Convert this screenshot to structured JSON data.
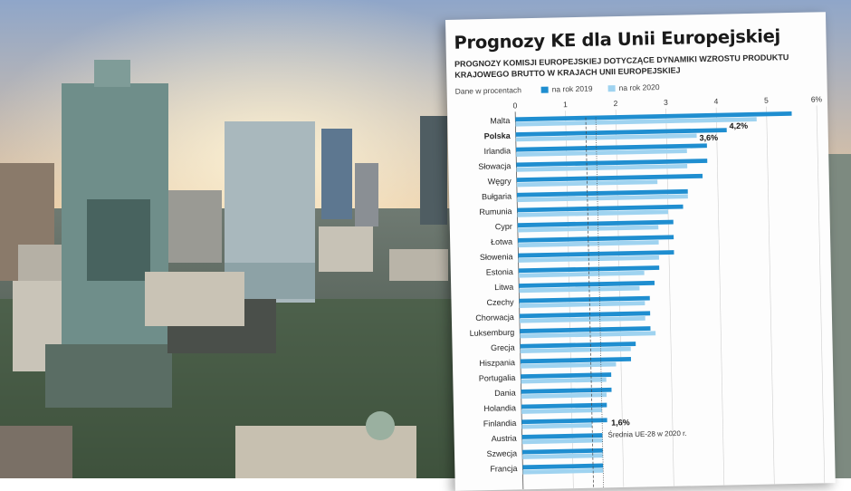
{
  "photo": {
    "sky_top": "#8fa6c9",
    "sky_glow": "#f6d9a6",
    "city": "#5f6b6a"
  },
  "card": {
    "title": "Prognozy KE dla Unii Europejskiej",
    "subtitle": "PROGNOZY KOMISJI EUROPEJSKIEJ DOTYCZĄCE DYNAMIKI WZROSTU PRODUKTU KRAJOWEGO BRUTTO W KRAJACH UNII EUROPEJSKIEJ",
    "unit": "Dane w procentach",
    "legend": [
      {
        "label": "na rok 2019",
        "color": "#1f8ed0"
      },
      {
        "label": "na rok 2020",
        "color": "#9fd3f0"
      }
    ]
  },
  "chart_data": {
    "type": "bar",
    "orientation": "horizontal",
    "categories": [
      "Malta",
      "Polska",
      "Irlandia",
      "Słowacja",
      "Węgry",
      "Bułgaria",
      "Rumunia",
      "Cypr",
      "Łotwa",
      "Słowenia",
      "Estonia",
      "Litwa",
      "Czechy",
      "Chorwacja",
      "Luksemburg",
      "Grecja",
      "Hiszpania",
      "Portugalia",
      "Dania",
      "Holandia",
      "Finlandia",
      "Austria",
      "Szwecja",
      "Francja"
    ],
    "series": [
      {
        "name": "na rok 2019",
        "color": "#1f8ed0",
        "values": [
          5.5,
          4.2,
          3.8,
          3.8,
          3.7,
          3.4,
          3.3,
          3.1,
          3.1,
          3.1,
          2.8,
          2.7,
          2.6,
          2.6,
          2.6,
          2.3,
          2.2,
          1.8,
          1.8,
          1.7,
          1.7,
          1.6,
          1.6,
          1.6
        ]
      },
      {
        "name": "na rok 2020",
        "color": "#9fd3f0",
        "values": [
          4.8,
          3.6,
          3.4,
          3.4,
          2.8,
          3.4,
          3.0,
          2.8,
          2.8,
          2.8,
          2.5,
          2.4,
          2.5,
          2.5,
          2.7,
          2.2,
          1.9,
          1.7,
          1.7,
          1.6,
          1.4,
          1.6,
          1.6,
          1.6
        ]
      }
    ],
    "xticks": [
      "0",
      "1",
      "2",
      "3",
      "4",
      "5",
      "6%"
    ],
    "xlim": [
      0,
      6
    ],
    "highlight_category": "Polska",
    "data_labels": [
      {
        "category": "Polska",
        "series": 0,
        "text": "4,2%"
      },
      {
        "category": "Polska",
        "series": 1,
        "text": "3,6%"
      }
    ],
    "reference_lines": [
      {
        "value": 1.4,
        "style": "dashed"
      },
      {
        "value": 1.6,
        "style": "dotted",
        "label": "1,6%",
        "note": "Średnia UE-28 w 2020 r."
      }
    ],
    "grid": true
  }
}
